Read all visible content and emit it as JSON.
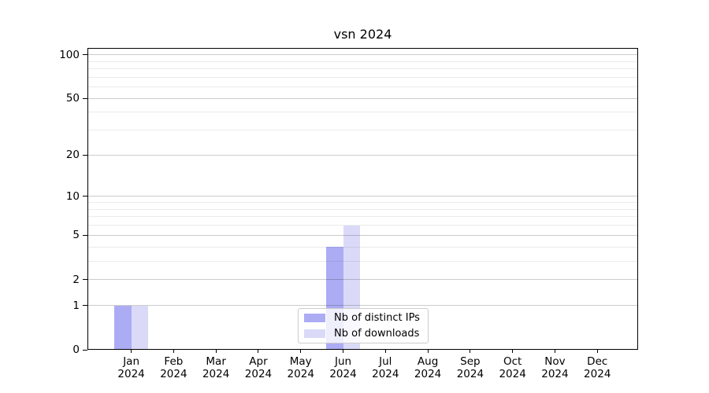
{
  "chart_data": {
    "type": "bar",
    "title": "vsn 2024",
    "months": [
      "Jan",
      "Feb",
      "Mar",
      "Apr",
      "May",
      "Jun",
      "Jul",
      "Aug",
      "Sep",
      "Oct",
      "Nov",
      "Dec"
    ],
    "year": "2024",
    "series": [
      {
        "name": "Nb of distinct IPs",
        "color": "#acacf4",
        "values": [
          1,
          0,
          0,
          0,
          0,
          4,
          0,
          0,
          0,
          0,
          0,
          0
        ]
      },
      {
        "name": "Nb of downloads",
        "color": "#dadaf8",
        "values": [
          1,
          0,
          0,
          0,
          0,
          6,
          0,
          0,
          0,
          0,
          0,
          0
        ]
      }
    ],
    "y_scale": "log1p",
    "y_ticks": [
      0,
      1,
      2,
      5,
      10,
      20,
      50,
      100
    ],
    "y_minor_ticks": [
      3,
      4,
      6,
      7,
      8,
      9,
      30,
      40,
      60,
      70,
      80,
      90
    ],
    "ylim": [
      0,
      110
    ],
    "grid": true,
    "legend_position": "lower center",
    "colors": {
      "major_gridline": "rgba(0,0,0,0.20)",
      "minor_gridline": "rgba(0,0,0,0.08)",
      "axis": "#000000",
      "text": "#000000",
      "legend_border": "#cccccc",
      "legend_background": "rgba(255,255,255,0.8)",
      "background": "#ffffff"
    }
  }
}
